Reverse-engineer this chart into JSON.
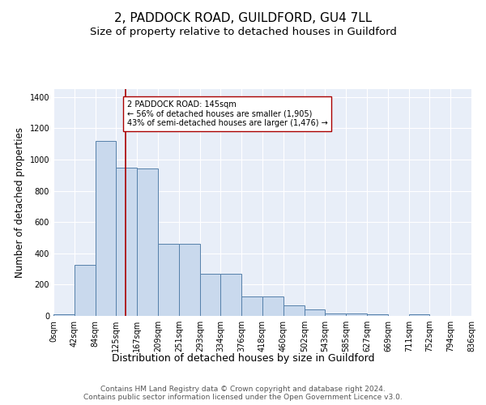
{
  "title": "2, PADDOCK ROAD, GUILDFORD, GU4 7LL",
  "subtitle": "Size of property relative to detached houses in Guildford",
  "xlabel": "Distribution of detached houses by size in Guildford",
  "ylabel": "Number of detached properties",
  "footer_line1": "Contains HM Land Registry data © Crown copyright and database right 2024.",
  "footer_line2": "Contains public sector information licensed under the Open Government Licence v3.0.",
  "bin_labels": [
    "0sqm",
    "42sqm",
    "84sqm",
    "125sqm",
    "167sqm",
    "209sqm",
    "251sqm",
    "293sqm",
    "334sqm",
    "376sqm",
    "418sqm",
    "460sqm",
    "502sqm",
    "543sqm",
    "585sqm",
    "627sqm",
    "669sqm",
    "711sqm",
    "752sqm",
    "794sqm",
    "836sqm"
  ],
  "bar_values": [
    10,
    325,
    1120,
    950,
    940,
    460,
    460,
    270,
    270,
    125,
    125,
    65,
    40,
    18,
    18,
    10,
    0,
    10,
    0,
    0,
    0
  ],
  "bar_color": "#c9d9ed",
  "bar_edge_color": "#5580aa",
  "vline_x": 145,
  "vline_color": "#aa0000",
  "annotation_text": "2 PADDOCK ROAD: 145sqm\n← 56% of detached houses are smaller (1,905)\n43% of semi-detached houses are larger (1,476) →",
  "annotation_box_color": "#ffffff",
  "annotation_box_edge": "#aa0000",
  "ylim": [
    0,
    1450
  ],
  "yticks": [
    0,
    200,
    400,
    600,
    800,
    1000,
    1200,
    1400
  ],
  "background_color": "#e8eef8",
  "grid_color": "#ffffff",
  "title_fontsize": 11,
  "subtitle_fontsize": 9.5,
  "xlabel_fontsize": 9,
  "ylabel_fontsize": 8.5,
  "tick_fontsize": 7,
  "footer_fontsize": 6.5,
  "bin_edges": [
    0,
    42,
    84,
    125,
    167,
    209,
    251,
    293,
    334,
    376,
    418,
    460,
    502,
    543,
    585,
    627,
    669,
    711,
    752,
    794,
    836
  ]
}
